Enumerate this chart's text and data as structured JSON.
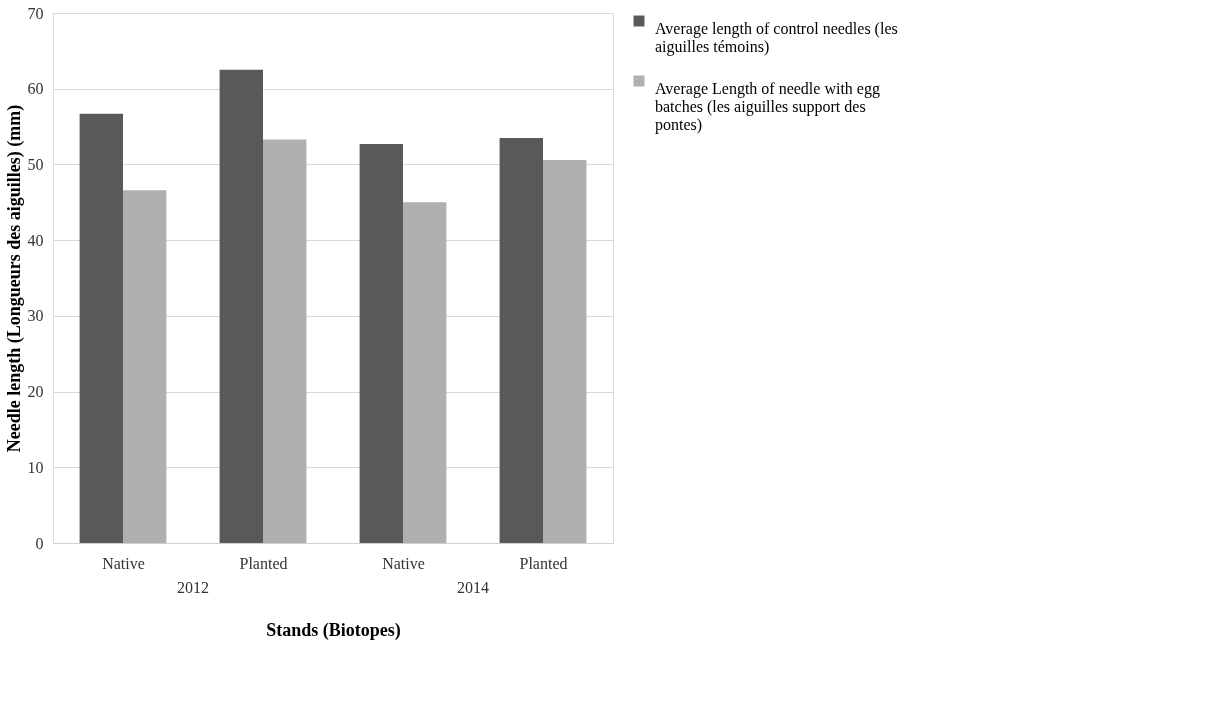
{
  "chart_data": {
    "type": "bar",
    "xlabel": "Stands (Biotopes)",
    "ylabel": "Needle length (Longueurs des aiguilles) (mm)",
    "categories": [
      "Native",
      "Planted",
      "Native",
      "Planted"
    ],
    "series": [
      {
        "name": "Average length of control needles (les aiguilles témoins)",
        "color": "#595959",
        "values": [
          56.7,
          62.5,
          52.7,
          53.5
        ]
      },
      {
        "name": "Average Length of needle with egg batches (les aiguilles support des pontes)",
        "color": "#b0b0b0",
        "values": [
          46.6,
          53.3,
          45.0,
          50.6
        ]
      }
    ],
    "annotations": [
      "2012",
      "2014"
    ],
    "ylim": [
      0,
      70
    ],
    "yticks": [
      0,
      10,
      20,
      30,
      40,
      50,
      60,
      70
    ],
    "grid": "y",
    "legend": "right"
  }
}
